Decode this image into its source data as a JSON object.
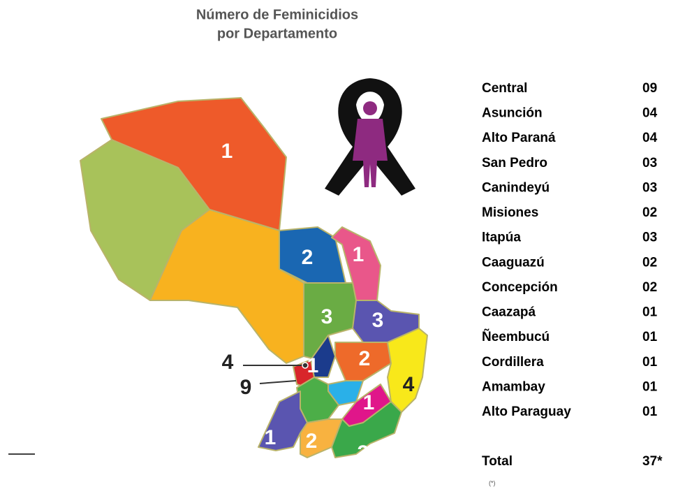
{
  "title": [
    "Número de Feminicidios",
    "por Departamento"
  ],
  "map_labels": [
    1,
    2,
    1,
    3,
    3,
    4,
    1,
    9,
    2,
    4,
    1,
    1,
    2,
    3
  ],
  "table": {
    "rows": [
      [
        "Central",
        "09"
      ],
      [
        "Asunción",
        "04"
      ],
      [
        "Alto Paraná",
        "04"
      ],
      [
        "San Pedro",
        "03"
      ],
      [
        "Canindeyú",
        "03"
      ],
      [
        "Misiones",
        "02"
      ],
      [
        "Itapúa",
        "03"
      ],
      [
        "Caaguazú",
        "02"
      ],
      [
        "Concepción",
        "02"
      ],
      [
        "Caazapá",
        "01"
      ],
      [
        "Ñeembucú",
        "01"
      ],
      [
        "Cordillera",
        "01"
      ],
      [
        "Amambay",
        "01"
      ],
      [
        "Alto Paraguay",
        "01"
      ]
    ],
    "total": [
      "Total",
      "37*"
    ]
  },
  "footnote": "(*)"
}
